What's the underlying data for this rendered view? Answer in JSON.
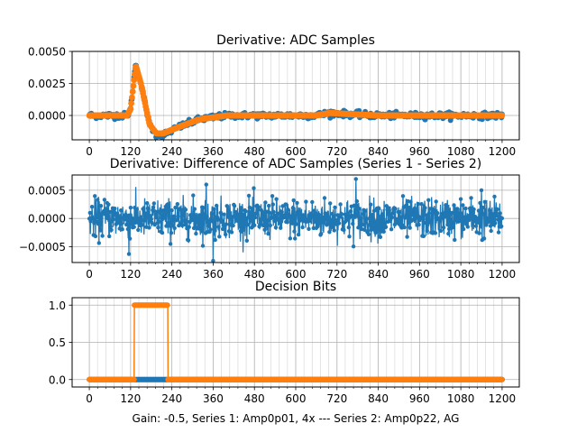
{
  "figure_caption": "Gain: -0.5, Series 1: Amp0p01, 4x --- Series 2: Amp0p22, AG",
  "colors": {
    "series1": "#1f77b4",
    "series2": "#ff7f0e",
    "grid": "#b0b0b0",
    "grid_minor": "#dddddd"
  },
  "chart_data": [
    {
      "type": "scatter",
      "title": "Derivative: ADC Samples",
      "xlabel": "",
      "ylabel": "",
      "xlim": [
        -50,
        1250
      ],
      "ylim": [
        -0.0019,
        0.005
      ],
      "xticks": [
        0,
        120,
        240,
        360,
        480,
        600,
        720,
        840,
        960,
        1080,
        1200
      ],
      "xtick_labels": [
        "0",
        "120",
        "240",
        "360",
        "480",
        "600",
        "720",
        "840",
        "960",
        "1080",
        "1200"
      ],
      "yticks": [
        0.0,
        0.0025,
        0.005
      ],
      "ytick_labels": [
        "0.0000",
        "0.0025",
        "0.0050"
      ],
      "grid": true,
      "series": [
        {
          "name": "Series 1",
          "color": "#1f77b4",
          "noise": 0.00025,
          "points": [
            [
              0,
              0
            ],
            [
              110,
              0
            ],
            [
              120,
              0.0005
            ],
            [
              135,
              0.0041
            ],
            [
              150,
              0.0025
            ],
            [
              175,
              -0.0007
            ],
            [
              195,
              -0.0015
            ],
            [
              215,
              -0.0015
            ],
            [
              260,
              -0.0009
            ],
            [
              320,
              -0.0003
            ],
            [
              400,
              0
            ],
            [
              660,
              0
            ],
            [
              700,
              0.0002
            ],
            [
              760,
              0.0001
            ],
            [
              840,
              0
            ],
            [
              1200,
              0
            ]
          ]
        },
        {
          "name": "Series 2",
          "color": "#ff7f0e",
          "noise": 0,
          "points": [
            [
              0,
              0
            ],
            [
              110,
              0
            ],
            [
              120,
              0.0005
            ],
            [
              135,
              0.0039
            ],
            [
              150,
              0.0025
            ],
            [
              175,
              -0.0007
            ],
            [
              195,
              -0.0014
            ],
            [
              215,
              -0.0014
            ],
            [
              260,
              -0.0009
            ],
            [
              320,
              -0.0003
            ],
            [
              400,
              0
            ],
            [
              660,
              0
            ],
            [
              700,
              0.0002
            ],
            [
              760,
              0.0001
            ],
            [
              840,
              0
            ],
            [
              1200,
              0
            ]
          ]
        }
      ]
    },
    {
      "type": "line",
      "title": "Derivative: Difference of ADC Samples (Series 1 - Series 2)",
      "xlabel": "",
      "ylabel": "",
      "xlim": [
        -50,
        1250
      ],
      "ylim": [
        -0.00078,
        0.00077
      ],
      "xticks": [
        0,
        120,
        240,
        360,
        480,
        600,
        720,
        840,
        960,
        1080,
        1200
      ],
      "xtick_labels": [
        "0",
        "120",
        "240",
        "360",
        "480",
        "600",
        "720",
        "840",
        "960",
        "1080",
        "1200"
      ],
      "yticks": [
        -0.0005,
        0.0,
        0.0005
      ],
      "ytick_labels": [
        "−0.0005",
        "0.0000",
        "0.0005"
      ],
      "grid": true,
      "series": [
        {
          "name": "Series 1 - Series 2",
          "color": "#1f77b4",
          "noise_std": 0.00017,
          "mean": 0,
          "extremes": [
            [
              360,
              -0.00075
            ],
            [
              775,
              0.0007
            ],
            [
              115,
              -0.00063
            ],
            [
              1140,
              0.0005
            ],
            [
              340,
              0.0006
            ]
          ]
        }
      ]
    },
    {
      "type": "line",
      "title": "Decision Bits",
      "xlabel": "Gain: -0.5, Series 1: Amp0p01, 4x --- Series 2: Amp0p22, AG",
      "ylabel": "",
      "xlim": [
        -50,
        1250
      ],
      "ylim": [
        -0.1,
        1.1
      ],
      "xticks": [
        0,
        120,
        240,
        360,
        480,
        600,
        720,
        840,
        960,
        1080,
        1200
      ],
      "xtick_labels": [
        "0",
        "120",
        "240",
        "360",
        "480",
        "600",
        "720",
        "840",
        "960",
        "1080",
        "1200"
      ],
      "yticks": [
        0.0,
        0.5,
        1.0
      ],
      "ytick_labels": [
        "0.0",
        "0.5",
        "1.0"
      ],
      "grid": true,
      "series": [
        {
          "name": "Series 1",
          "color": "#1f77b4",
          "segments": [
            [
              0,
              1200,
              0
            ]
          ]
        },
        {
          "name": "Series 2",
          "color": "#ff7f0e",
          "segments": [
            [
              0,
              130,
              0
            ],
            [
              131,
              228,
              1
            ],
            [
              229,
              1200,
              0
            ]
          ]
        }
      ]
    }
  ]
}
